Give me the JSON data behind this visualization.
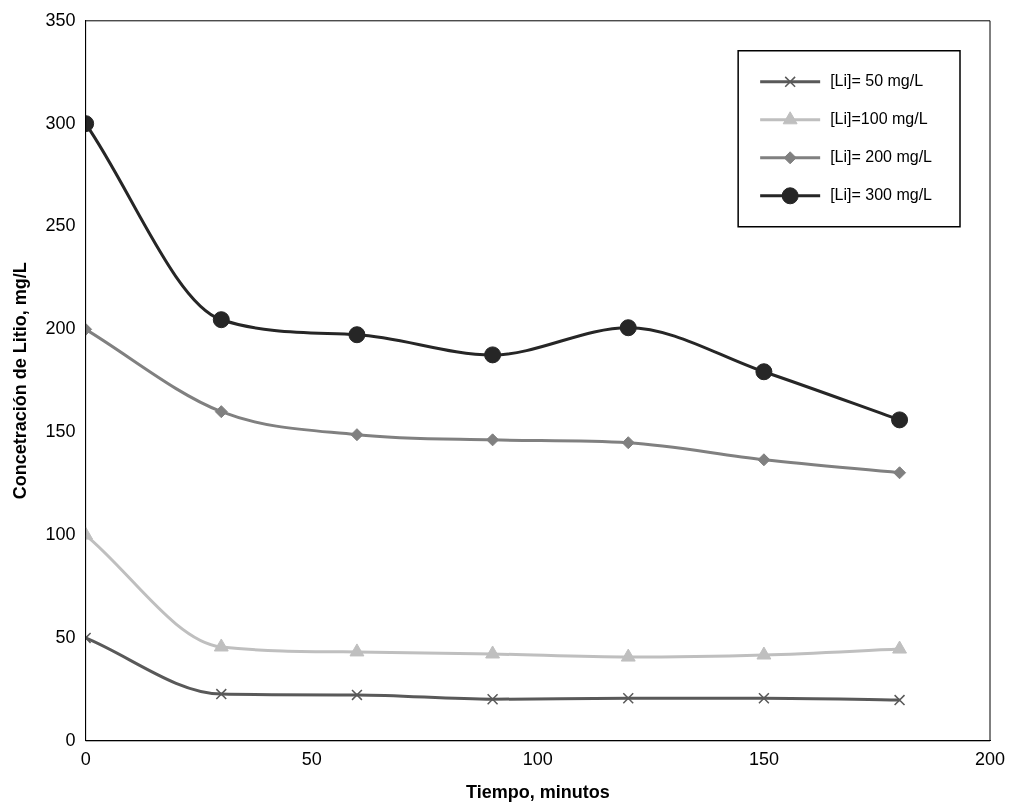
{
  "chart_data": {
    "type": "line",
    "xlabel": "Tiempo, minutos",
    "ylabel": "Concetración de Litio, mg/L",
    "x": [
      0,
      30,
      60,
      90,
      120,
      150,
      180
    ],
    "series": [
      {
        "name": "[Li]= 50 mg/L",
        "color": "#595959",
        "marker": "cross",
        "values": [
          50,
          22.7,
          22.3,
          20.2,
          20.7,
          20.7,
          19.8
        ]
      },
      {
        "name": "[Li]=100 mg/L",
        "color": "#bfbfbf",
        "marker": "triangle",
        "values": [
          100,
          45.6,
          43.2,
          42.2,
          40.7,
          41.7,
          44.6
        ]
      },
      {
        "name": "[Li]= 200 mg/L",
        "color": "#808080",
        "marker": "diamond",
        "values": [
          200,
          160,
          148.8,
          146.3,
          144.9,
          136.6,
          130.3
        ]
      },
      {
        "name": "[Li]= 300 mg/L",
        "color": "#262626",
        "marker": "circle",
        "values": [
          300,
          204.7,
          197.4,
          187.6,
          200.8,
          179.4,
          156
        ]
      }
    ],
    "xlim": [
      0,
      200
    ],
    "xticks": [
      0,
      50,
      100,
      150,
      200
    ],
    "ylim": [
      0,
      350
    ],
    "yticks": [
      0,
      50,
      100,
      150,
      200,
      250,
      300,
      350
    ],
    "grid": false,
    "legend": "top right",
    "line_style": "solid"
  }
}
